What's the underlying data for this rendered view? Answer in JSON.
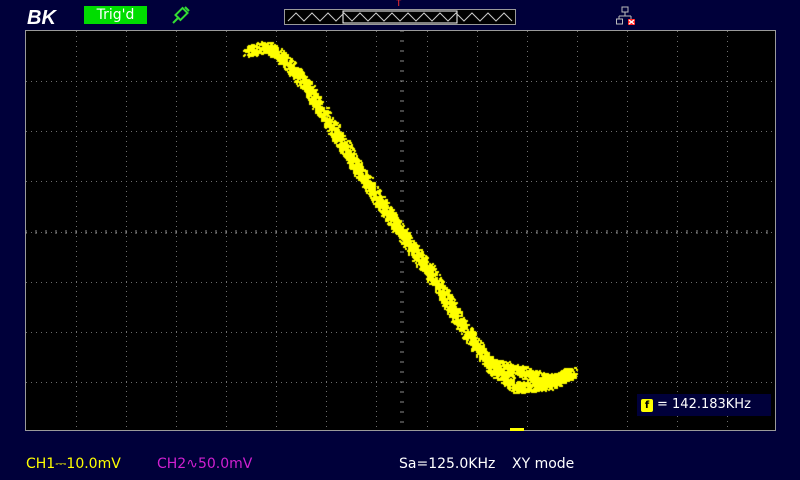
{
  "brand": {
    "logo_text": "BK"
  },
  "trigger": {
    "status_label": "Trig'd",
    "position_marker": "T"
  },
  "icons": {
    "brand": "bk-precision-logo",
    "probe": "probe-icon",
    "network": "network-disconnected-icon",
    "frequency": "frequency-counter-icon"
  },
  "memory": {
    "visible_window": [
      0.25,
      0.75
    ]
  },
  "frequency": {
    "icon_glyph": "f",
    "readout": "= 142.183KHz"
  },
  "channels": {
    "ch1": {
      "label": "CH1",
      "coupling_glyph": "⎓",
      "scale": "10.0mV",
      "color": "#ffff00"
    },
    "ch2": {
      "label": "CH2",
      "coupling_glyph": "∿",
      "scale": "50.0mV",
      "color": "#d020d0"
    }
  },
  "acquisition": {
    "sample_rate": "Sa=125.0KHz",
    "mode": "XY mode"
  },
  "colors": {
    "background": "#00003a",
    "grid_bg": "#000000",
    "trace": "#ffff00",
    "trig_badge": "#00dd00",
    "network_x": "#ff2020"
  },
  "trace": {
    "type": "xy",
    "x_divisions": 15,
    "y_divisions": 8,
    "curve_divisions": [
      [
        4.4,
        7.6
      ],
      [
        4.8,
        7.7
      ],
      [
        5.2,
        7.4
      ],
      [
        5.6,
        6.9
      ],
      [
        6.1,
        6.1
      ],
      [
        6.6,
        5.3
      ],
      [
        7.2,
        4.4
      ],
      [
        7.7,
        3.7
      ],
      [
        8.2,
        3.0
      ],
      [
        8.6,
        2.3
      ],
      [
        9.0,
        1.7
      ],
      [
        9.4,
        1.2
      ],
      [
        9.8,
        0.9
      ],
      [
        10.4,
        0.95
      ],
      [
        10.9,
        1.2
      ],
      [
        10.5,
        1.05
      ],
      [
        9.2,
        1.4
      ]
    ],
    "noise": 0.18
  }
}
